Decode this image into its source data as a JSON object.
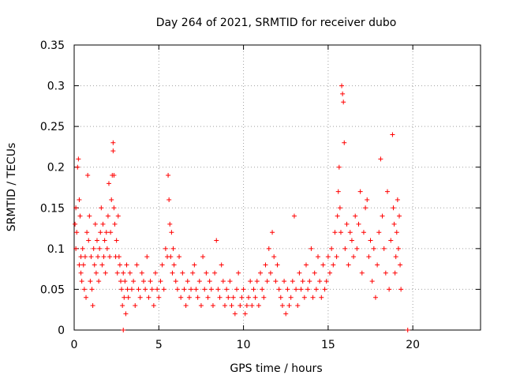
{
  "chart_data": {
    "type": "scatter",
    "title": "Day 264 of 2021, SRMTID for receiver dubo",
    "xlabel": "GPS time / hours",
    "ylabel": "SRMTID / TECUs",
    "xlim": [
      0,
      24
    ],
    "ylim": [
      0,
      0.35
    ],
    "grid": true,
    "marker": "+",
    "color": "#ff0000",
    "x_ticks": [
      0,
      5,
      10,
      15,
      20
    ],
    "x_tick_labels": [
      "0",
      "5",
      "10",
      "15",
      "20"
    ],
    "y_ticks": [
      0,
      0.05,
      0.1,
      0.15,
      0.2,
      0.25,
      0.3,
      0.35
    ],
    "y_tick_labels": [
      "0",
      "0.05",
      "0.1",
      "0.15",
      "0.2",
      "0.25",
      "0.3",
      "0.35"
    ],
    "series": [
      {
        "name": "SRMTID",
        "x": [
          0.05,
          0.1,
          0.1,
          0.15,
          0.2,
          0.25,
          0.3,
          0.3,
          0.35,
          0.4,
          0.4,
          0.45,
          0.5,
          0.55,
          0.6,
          0.65,
          0.7,
          0.75,
          0.8,
          0.85,
          0.9,
          0.95,
          1.0,
          1.05,
          1.1,
          1.15,
          1.2,
          1.25,
          1.3,
          1.35,
          1.4,
          1.45,
          1.5,
          1.55,
          1.6,
          1.65,
          1.7,
          1.75,
          1.8,
          1.85,
          1.9,
          1.95,
          2.0,
          2.05,
          2.1,
          2.15,
          2.2,
          2.25,
          2.3,
          2.3,
          2.35,
          2.35,
          2.4,
          2.45,
          2.5,
          2.55,
          2.6,
          2.65,
          2.7,
          2.75,
          2.8,
          2.85,
          2.9,
          2.95,
          3.0,
          3.05,
          3.1,
          3.15,
          3.2,
          3.3,
          3.4,
          3.5,
          3.6,
          3.7,
          3.8,
          3.9,
          4.0,
          4.1,
          4.2,
          4.3,
          4.4,
          4.5,
          4.6,
          4.7,
          4.8,
          4.9,
          5.0,
          5.1,
          5.2,
          5.3,
          5.4,
          5.5,
          5.55,
          5.6,
          5.65,
          5.7,
          5.75,
          5.8,
          5.85,
          5.9,
          6.0,
          6.1,
          6.2,
          6.3,
          6.4,
          6.5,
          6.6,
          6.7,
          6.8,
          6.9,
          7.0,
          7.1,
          7.2,
          7.3,
          7.4,
          7.5,
          7.6,
          7.7,
          7.8,
          7.9,
          8.0,
          8.1,
          8.2,
          8.3,
          8.4,
          8.5,
          8.6,
          8.7,
          8.8,
          8.9,
          9.0,
          9.1,
          9.2,
          9.3,
          9.4,
          9.5,
          9.6,
          9.7,
          9.8,
          9.9,
          10.0,
          10.1,
          10.2,
          10.3,
          10.4,
          10.5,
          10.6,
          10.7,
          10.8,
          10.9,
          11.0,
          11.1,
          11.2,
          11.3,
          11.4,
          11.5,
          11.6,
          11.7,
          11.8,
          11.9,
          12.0,
          12.1,
          12.2,
          12.3,
          12.4,
          12.5,
          12.6,
          12.7,
          12.8,
          12.9,
          13.0,
          13.1,
          13.2,
          13.3,
          13.4,
          13.5,
          13.6,
          13.7,
          13.8,
          13.9,
          14.0,
          14.1,
          14.2,
          14.3,
          14.4,
          14.5,
          14.6,
          14.7,
          14.8,
          14.9,
          15.0,
          15.1,
          15.2,
          15.3,
          15.4,
          15.5,
          15.55,
          15.6,
          15.65,
          15.7,
          15.75,
          15.8,
          15.85,
          15.9,
          15.95,
          16.0,
          16.1,
          16.2,
          16.3,
          16.4,
          16.5,
          16.6,
          16.7,
          16.8,
          16.9,
          17.0,
          17.1,
          17.2,
          17.3,
          17.4,
          17.5,
          17.6,
          17.7,
          17.8,
          17.9,
          18.0,
          18.1,
          18.2,
          18.3,
          18.4,
          18.5,
          18.6,
          18.7,
          18.8,
          18.85,
          18.9,
          18.95,
          19.0,
          19.05,
          19.1,
          19.15,
          19.2,
          19.25,
          19.3,
          2.9,
          19.7
        ],
        "values": [
          0.13,
          0.15,
          0.1,
          0.12,
          0.2,
          0.21,
          0.16,
          0.08,
          0.14,
          0.07,
          0.09,
          0.06,
          0.1,
          0.08,
          0.05,
          0.09,
          0.04,
          0.12,
          0.19,
          0.11,
          0.14,
          0.06,
          0.09,
          0.05,
          0.03,
          0.1,
          0.08,
          0.13,
          0.07,
          0.11,
          0.09,
          0.06,
          0.1,
          0.12,
          0.15,
          0.08,
          0.13,
          0.09,
          0.11,
          0.07,
          0.12,
          0.1,
          0.14,
          0.18,
          0.09,
          0.12,
          0.16,
          0.19,
          0.23,
          0.22,
          0.15,
          0.19,
          0.13,
          0.09,
          0.11,
          0.07,
          0.14,
          0.09,
          0.08,
          0.06,
          0.05,
          0.03,
          0.07,
          0.04,
          0.06,
          0.02,
          0.08,
          0.05,
          0.04,
          0.07,
          0.05,
          0.06,
          0.03,
          0.08,
          0.05,
          0.04,
          0.07,
          0.06,
          0.05,
          0.09,
          0.04,
          0.06,
          0.05,
          0.03,
          0.07,
          0.05,
          0.04,
          0.06,
          0.08,
          0.05,
          0.1,
          0.09,
          0.19,
          0.16,
          0.13,
          0.09,
          0.12,
          0.07,
          0.1,
          0.08,
          0.06,
          0.05,
          0.09,
          0.04,
          0.07,
          0.05,
          0.03,
          0.06,
          0.04,
          0.05,
          0.07,
          0.08,
          0.05,
          0.04,
          0.06,
          0.03,
          0.09,
          0.05,
          0.07,
          0.04,
          0.06,
          0.05,
          0.03,
          0.07,
          0.11,
          0.05,
          0.04,
          0.08,
          0.06,
          0.03,
          0.05,
          0.04,
          0.06,
          0.03,
          0.04,
          0.02,
          0.05,
          0.07,
          0.03,
          0.04,
          0.05,
          0.02,
          0.03,
          0.04,
          0.06,
          0.03,
          0.05,
          0.04,
          0.06,
          0.03,
          0.07,
          0.05,
          0.04,
          0.08,
          0.06,
          0.1,
          0.07,
          0.12,
          0.09,
          0.06,
          0.08,
          0.05,
          0.04,
          0.03,
          0.06,
          0.02,
          0.05,
          0.03,
          0.04,
          0.06,
          0.14,
          0.05,
          0.03,
          0.07,
          0.05,
          0.06,
          0.04,
          0.08,
          0.05,
          0.06,
          0.1,
          0.04,
          0.07,
          0.05,
          0.09,
          0.06,
          0.04,
          0.08,
          0.05,
          0.06,
          0.09,
          0.07,
          0.1,
          0.08,
          0.12,
          0.09,
          0.14,
          0.17,
          0.2,
          0.15,
          0.12,
          0.3,
          0.29,
          0.28,
          0.23,
          0.1,
          0.13,
          0.08,
          0.12,
          0.11,
          0.09,
          0.14,
          0.1,
          0.13,
          0.17,
          0.07,
          0.12,
          0.15,
          0.16,
          0.09,
          0.11,
          0.06,
          0.1,
          0.04,
          0.08,
          0.12,
          0.21,
          0.14,
          0.1,
          0.07,
          0.17,
          0.05,
          0.11,
          0.24,
          0.15,
          0.13,
          0.07,
          0.09,
          0.12,
          0.16,
          0.1,
          0.14,
          0.08,
          0.05,
          0.0,
          0.0
        ]
      }
    ]
  }
}
